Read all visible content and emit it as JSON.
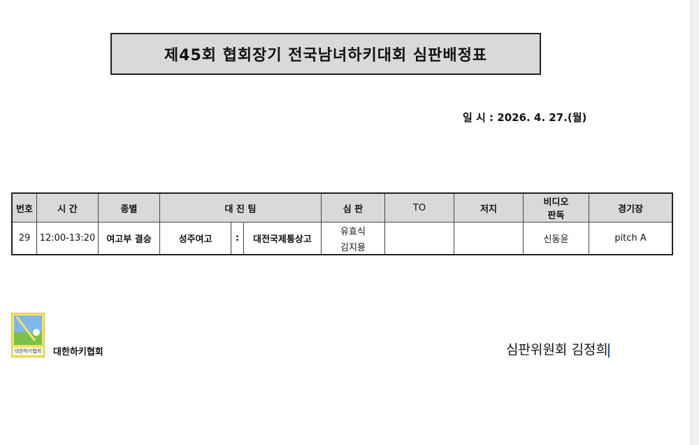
{
  "title": "제45회 협회장기 전국남녀하키대회 심판배정표",
  "date": "일 시 : 2026. 4. 27.(월)",
  "headers": {
    "no": "번호",
    "time": "시 간",
    "category": "종별",
    "teams": "대 진 팀",
    "referee": "심 판",
    "to": "TO",
    "judge": "저지",
    "video": "비디오\n판독",
    "venue": "경기장"
  },
  "rows": [
    {
      "no": "29",
      "time": "12:00-13:20",
      "category": "여고부 결승",
      "team1": "성주여고",
      "sep": ":",
      "team2": "대전국제통상고",
      "referee1": "유효식",
      "referee2": "김지용",
      "to": "",
      "judge": "",
      "video": "신동윤",
      "venue": "pitch A"
    }
  ],
  "footer": {
    "logo_text": "대한하키협회",
    "org": "대한하키협회",
    "signature": "심판위원회 김정희"
  }
}
